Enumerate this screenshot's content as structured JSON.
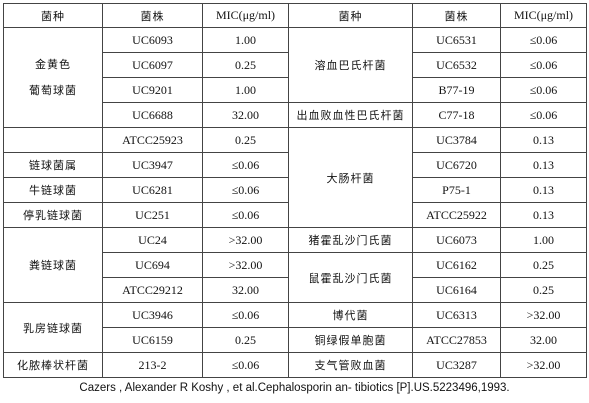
{
  "headers": {
    "left_species": "菌种",
    "left_strain": "菌株",
    "left_mic": "MIC(μg/ml)",
    "right_species": "菌种",
    "right_strain": "菌株",
    "right_mic": "MIC(μg/ml)"
  },
  "left": {
    "species": {
      "staph_line1": "金黄色",
      "staph_line2": "葡萄球菌",
      "strep": "链球菌属",
      "bovis": "牛链球菌",
      "lactis": "停乳链球菌",
      "faecalis": "粪链球菌",
      "mastitis_line1": "乳房链球菌",
      "pyogenes": "化脓棒状杆菌"
    },
    "rows": [
      {
        "strain": "UC6093",
        "mic": "1.00"
      },
      {
        "strain": "UC6097",
        "mic": "0.25"
      },
      {
        "strain": "UC9201",
        "mic": "1.00"
      },
      {
        "strain": "UC6688",
        "mic": "32.00"
      },
      {
        "strain": "ATCC25923",
        "mic": "0.25"
      },
      {
        "strain": "UC3947",
        "mic": "≤0.06"
      },
      {
        "strain": "UC6281",
        "mic": "≤0.06"
      },
      {
        "strain": "UC251",
        "mic": "≤0.06"
      },
      {
        "strain": "UC24",
        "mic": ">32.00"
      },
      {
        "strain": "UC694",
        "mic": ">32.00"
      },
      {
        "strain": "ATCC29212",
        "mic": "32.00"
      },
      {
        "strain": "UC3946",
        "mic": "≤0.06"
      },
      {
        "strain": "UC6159",
        "mic": "0.25"
      },
      {
        "strain": "213-2",
        "mic": "≤0.06"
      }
    ]
  },
  "right": {
    "species": {
      "hemolytic_pasteurella": "溶血巴氏杆菌",
      "septic_pasteurella": "出血败血性巴氏杆菌",
      "ecoli": "大肠杆菌",
      "salmonella_cholerae": "猪霍乱沙门氏菌",
      "salmonella_typhimurium": "鼠霍乱沙门氏菌",
      "proteus": "博代菌",
      "pseudomonas": "铜绿假单胞菌",
      "haemophilus": "支气管败血菌"
    },
    "rows": [
      {
        "strain": "UC6531",
        "mic": "≤0.06"
      },
      {
        "strain": "UC6532",
        "mic": "≤0.06"
      },
      {
        "strain": "B77-19",
        "mic": "≤0.06"
      },
      {
        "strain": "C77-18",
        "mic": "≤0.06"
      },
      {
        "strain": "UC3784",
        "mic": "0.13"
      },
      {
        "strain": "UC6720",
        "mic": "0.13"
      },
      {
        "strain": "P75-1",
        "mic": "0.13"
      },
      {
        "strain": "ATCC25922",
        "mic": "0.13"
      },
      {
        "strain": "UC6073",
        "mic": "1.00"
      },
      {
        "strain": "UC6162",
        "mic": "0.25"
      },
      {
        "strain": "UC6164",
        "mic": "0.25"
      },
      {
        "strain": "UC6313",
        "mic": ">32.00"
      },
      {
        "strain": "ATCC27853",
        "mic": "32.00"
      },
      {
        "strain": "UC3287",
        "mic": ">32.00"
      }
    ]
  },
  "caption": "Cazers , Alexander R Koshy , et al.Cephalosporin an- tibiotics [P].US.5223496,1993."
}
